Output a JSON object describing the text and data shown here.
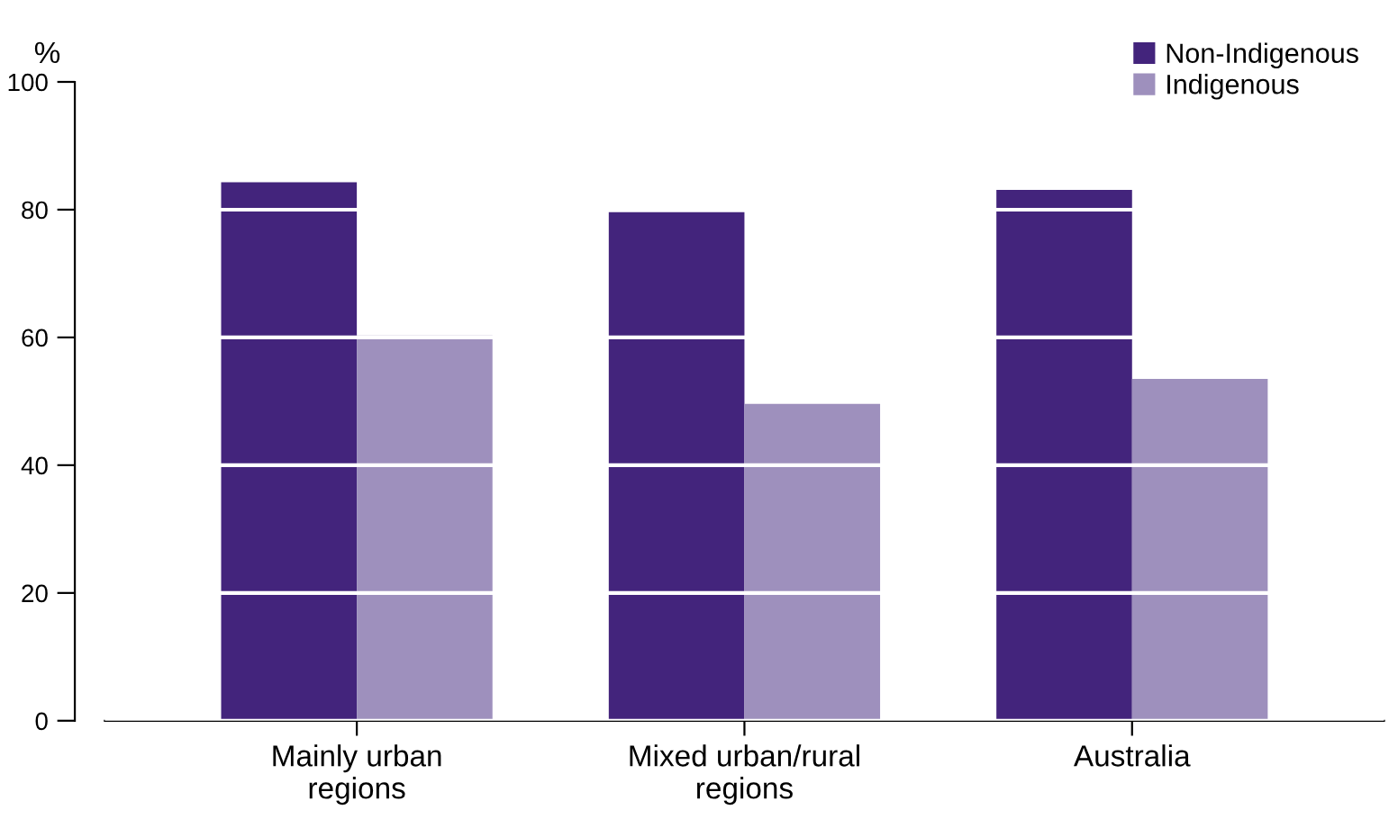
{
  "chart_data": {
    "type": "bar",
    "ylabel": "%",
    "categories": [
      "Mainly urban\nregions",
      "Mixed urban/rural\nregions",
      "Australia"
    ],
    "series": [
      {
        "name": "Non-Indigenous",
        "color": "#43247c",
        "values": [
          84.3,
          79.6,
          83.1
        ]
      },
      {
        "name": "Indigenous",
        "color": "#9e90bd",
        "values": [
          60.3,
          49.6,
          53.5
        ]
      }
    ],
    "ylim": [
      0,
      100
    ],
    "yticks": [
      0,
      20,
      40,
      60,
      80,
      100
    ],
    "grid": "y",
    "legend": "top right"
  }
}
